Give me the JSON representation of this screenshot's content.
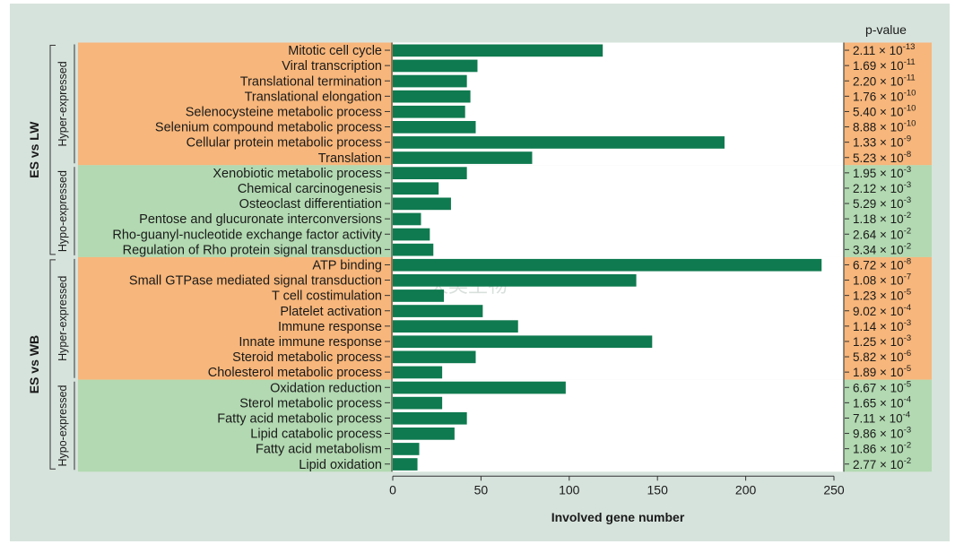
{
  "colors": {
    "panel": "#d6e3dc",
    "hyper": "#f7b67b",
    "hypo": "#b2d9b1",
    "bar": "#0f7a4f",
    "plot": "#ffffff"
  },
  "pvalue_header": "p-value",
  "watermark": {
    "latin": "GENESKY",
    "chinese": "天昊生物"
  },
  "chart_data": {
    "type": "bar",
    "orientation": "horizontal",
    "xlabel": "Involved gene number",
    "xlim": [
      0,
      250
    ],
    "xticks": [
      0,
      50,
      100,
      150,
      200,
      250
    ],
    "comparisons": [
      {
        "name": "ES vs LW",
        "groups": [
          {
            "name": "Hyper-expressed",
            "color": "#f7b67b",
            "terms": [
              {
                "label": "Mitotic cell cycle",
                "value": 119,
                "p_mantissa": "2.11",
                "p_exponent": "-13"
              },
              {
                "label": "Viral transcription",
                "value": 48,
                "p_mantissa": "1.69",
                "p_exponent": "-11"
              },
              {
                "label": "Translational termination",
                "value": 42,
                "p_mantissa": "2.20",
                "p_exponent": "-11"
              },
              {
                "label": "Translational elongation",
                "value": 44,
                "p_mantissa": "1.76",
                "p_exponent": "-10"
              },
              {
                "label": "Selenocysteine metabolic process",
                "value": 41,
                "p_mantissa": "5.40",
                "p_exponent": "-10"
              },
              {
                "label": "Selenium compound metabolic process",
                "value": 47,
                "p_mantissa": "8.88",
                "p_exponent": "-10"
              },
              {
                "label": "Cellular protein metabolic process",
                "value": 188,
                "p_mantissa": "1.33",
                "p_exponent": "-9"
              },
              {
                "label": "Translation",
                "value": 79,
                "p_mantissa": "5.23",
                "p_exponent": "-8"
              }
            ]
          },
          {
            "name": "Hypo-expressed",
            "color": "#b2d9b1",
            "terms": [
              {
                "label": "Xenobiotic metabolic process",
                "value": 42,
                "p_mantissa": "1.95",
                "p_exponent": "-3"
              },
              {
                "label": "Chemical carcinogenesis",
                "value": 26,
                "p_mantissa": "2.12",
                "p_exponent": "-3"
              },
              {
                "label": "Osteoclast differentiation",
                "value": 33,
                "p_mantissa": "5.29",
                "p_exponent": "-3"
              },
              {
                "label": "Pentose and glucuronate interconversions",
                "value": 16,
                "p_mantissa": "1.18",
                "p_exponent": "-2"
              },
              {
                "label": "Rho-guanyl-nucleotide exchange factor activity",
                "value": 21,
                "p_mantissa": "2.64",
                "p_exponent": "-2"
              },
              {
                "label": "Regulation of Rho protein signal transduction",
                "value": 23,
                "p_mantissa": "3.34",
                "p_exponent": "-2"
              }
            ]
          }
        ]
      },
      {
        "name": "ES vs WB",
        "groups": [
          {
            "name": "Hyper-expressed",
            "color": "#f7b67b",
            "terms": [
              {
                "label": "ATP binding",
                "value": 243,
                "p_mantissa": "6.72",
                "p_exponent": "-8"
              },
              {
                "label": "Small GTPase mediated signal transduction",
                "value": 138,
                "p_mantissa": "1.08",
                "p_exponent": "-7"
              },
              {
                "label": "T cell costimulation",
                "value": 29,
                "p_mantissa": "1.23",
                "p_exponent": "-5"
              },
              {
                "label": "Platelet activation",
                "value": 51,
                "p_mantissa": "9.02",
                "p_exponent": "-4"
              },
              {
                "label": "Immune response",
                "value": 71,
                "p_mantissa": "1.14",
                "p_exponent": "-3"
              },
              {
                "label": "Innate immune response",
                "value": 147,
                "p_mantissa": "1.25",
                "p_exponent": "-3"
              },
              {
                "label": "Steroid metabolic process",
                "value": 47,
                "p_mantissa": "5.82",
                "p_exponent": "-6"
              },
              {
                "label": "Cholesterol metabolic process",
                "value": 28,
                "p_mantissa": "1.89",
                "p_exponent": "-5"
              }
            ]
          },
          {
            "name": "Hypo-expressed",
            "color": "#b2d9b1",
            "terms": [
              {
                "label": "Oxidation reduction",
                "value": 98,
                "p_mantissa": "6.67",
                "p_exponent": "-5"
              },
              {
                "label": "Sterol metabolic process",
                "value": 28,
                "p_mantissa": "1.65",
                "p_exponent": "-4"
              },
              {
                "label": "Fatty acid metabolic process",
                "value": 42,
                "p_mantissa": "7.11",
                "p_exponent": "-4"
              },
              {
                "label": "Lipid catabolic process",
                "value": 35,
                "p_mantissa": "9.86",
                "p_exponent": "-3"
              },
              {
                "label": "Fatty acid metabolism",
                "value": 15,
                "p_mantissa": "1.86",
                "p_exponent": "-2"
              },
              {
                "label": "Lipid oxidation",
                "value": 14,
                "p_mantissa": "2.77",
                "p_exponent": "-2"
              }
            ]
          }
        ]
      }
    ]
  }
}
